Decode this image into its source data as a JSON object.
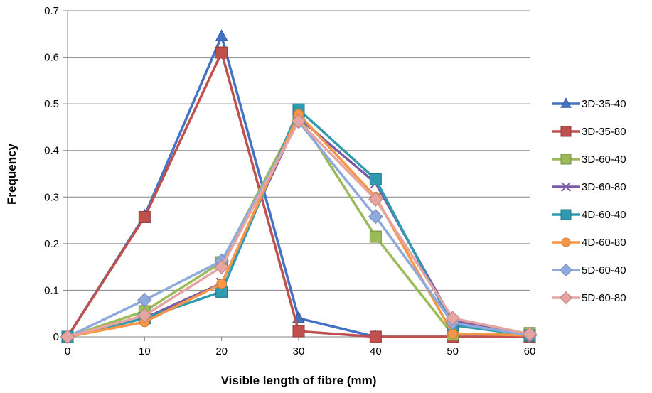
{
  "chart_data": {
    "type": "line",
    "title": "",
    "xlabel": "Visible length of fibre (mm)",
    "ylabel": "Frequency",
    "x": [
      0,
      10,
      20,
      30,
      40,
      50,
      60
    ],
    "xlim": [
      0,
      60
    ],
    "ylim": [
      0,
      0.7
    ],
    "xticks": [
      "0",
      "10",
      "20",
      "30",
      "40",
      "50",
      "60"
    ],
    "yticks": [
      "0",
      "0.1",
      "0.2",
      "0.3",
      "0.4",
      "0.5",
      "0.6",
      "0.7"
    ],
    "grid": "horizontal",
    "legend_position": "right",
    "series": [
      {
        "name": "3D-35-40",
        "color": "#4472C4",
        "marker": "triangle",
        "values": [
          0,
          0.26,
          0.645,
          0.04,
          0,
          0,
          0
        ]
      },
      {
        "name": "3D-35-80",
        "color": "#C0504D",
        "marker": "square",
        "values": [
          0,
          0.257,
          0.61,
          0.012,
          0,
          0,
          0
        ]
      },
      {
        "name": "3D-60-40",
        "color": "#9BBB59",
        "marker": "square",
        "values": [
          0,
          0.055,
          0.16,
          0.475,
          0.215,
          0.005,
          0.008
        ]
      },
      {
        "name": "3D-60-80",
        "color": "#7B5AA6",
        "marker": "x",
        "values": [
          0,
          0.04,
          0.115,
          0.47,
          0.33,
          0.035,
          0.003
        ]
      },
      {
        "name": "4D-60-40",
        "color": "#2F9AB0",
        "marker": "square",
        "values": [
          0,
          0.04,
          0.097,
          0.488,
          0.338,
          0.025,
          0.003
        ]
      },
      {
        "name": "4D-60-80",
        "color": "#F79646",
        "marker": "circle",
        "values": [
          0,
          0.032,
          0.114,
          0.478,
          0.3,
          0.007,
          0.003
        ]
      },
      {
        "name": "5D-60-40",
        "color": "#8EA9DB",
        "marker": "diamond",
        "values": [
          0,
          0.079,
          0.163,
          0.462,
          0.258,
          0.03,
          0.003
        ]
      },
      {
        "name": "5D-60-80",
        "color": "#E6A5A3",
        "marker": "diamond",
        "values": [
          0,
          0.046,
          0.15,
          0.463,
          0.295,
          0.04,
          0.006
        ]
      }
    ]
  }
}
